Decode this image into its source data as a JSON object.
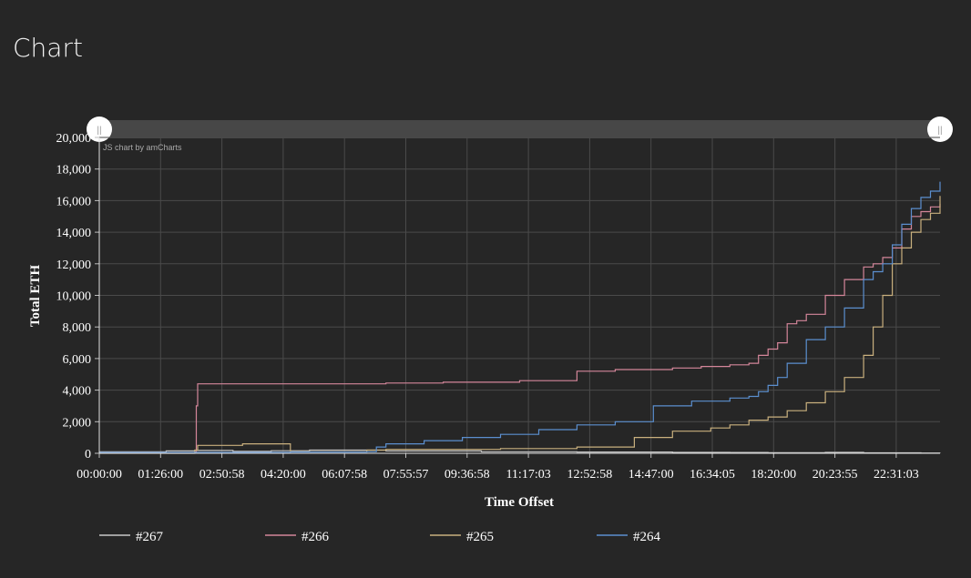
{
  "page": {
    "title": "Chart"
  },
  "credit_text": "JS chart by amCharts",
  "scrollbar": {
    "left_handle_glyph": "||",
    "right_handle_glyph": "||"
  },
  "chart_data": {
    "type": "line",
    "title": "",
    "xlabel": "Time Offset",
    "ylabel": "Total ETH",
    "x_range_seconds": [
      0,
      88000
    ],
    "x_ticks": [
      "00:00:00",
      "01:26:00",
      "02:50:58",
      "04:20:00",
      "06:07:58",
      "07:55:57",
      "09:36:58",
      "11:17:03",
      "12:52:58",
      "14:47:00",
      "16:34:05",
      "18:20:00",
      "20:23:55",
      "22:31:03"
    ],
    "ylim": [
      0,
      20000
    ],
    "y_ticks": [
      "0",
      "2,000",
      "4,000",
      "6,000",
      "8,000",
      "10,000",
      "12,000",
      "14,000",
      "16,000",
      "18,000",
      "20,000"
    ],
    "grid": true,
    "legend_position": "bottom",
    "series": [
      {
        "name": "#267",
        "color": "#c8c8c8",
        "x": [
          0,
          7000,
          10000,
          14000,
          18000,
          22000,
          30000,
          40000,
          50000,
          60000,
          66000,
          70000,
          76000,
          80000,
          86000,
          88000
        ],
        "y": [
          100,
          150,
          180,
          120,
          160,
          200,
          150,
          100,
          80,
          60,
          50,
          40,
          60,
          30,
          20,
          10
        ]
      },
      {
        "name": "#266",
        "color": "#d4869a",
        "x": [
          0,
          10000,
          10150,
          10300,
          15000,
          20000,
          30000,
          36000,
          38000,
          44000,
          50000,
          54000,
          60000,
          63000,
          66000,
          68000,
          69000,
          70000,
          71000,
          72000,
          73000,
          74000,
          76000,
          78000,
          80000,
          81000,
          82000,
          83000,
          84000,
          85000,
          86000,
          87000,
          88000
        ],
        "y": [
          50,
          80,
          3000,
          4400,
          4400,
          4400,
          4450,
          4500,
          4500,
          4600,
          5200,
          5300,
          5400,
          5500,
          5600,
          5700,
          6200,
          6600,
          7000,
          8200,
          8400,
          8800,
          10000,
          11000,
          11800,
          12000,
          12400,
          13000,
          14200,
          15000,
          15300,
          15600,
          15800
        ]
      },
      {
        "name": "#265",
        "color": "#c9b07e",
        "x": [
          0,
          10000,
          10300,
          15000,
          16000,
          20000,
          28000,
          30000,
          36000,
          42000,
          46000,
          50000,
          56000,
          60000,
          64000,
          66000,
          68000,
          70000,
          72000,
          74000,
          76000,
          78000,
          80000,
          81000,
          82000,
          83000,
          84000,
          85000,
          86000,
          87000,
          88000
        ],
        "y": [
          0,
          200,
          500,
          600,
          600,
          100,
          200,
          250,
          250,
          300,
          300,
          400,
          1000,
          1400,
          1600,
          1800,
          2100,
          2300,
          2700,
          3200,
          3900,
          4800,
          6200,
          8000,
          10000,
          12000,
          13000,
          14000,
          14800,
          15200,
          16300
        ]
      },
      {
        "name": "#264",
        "color": "#5b8fcf",
        "x": [
          0,
          10000,
          20000,
          28000,
          29000,
          30000,
          34000,
          38000,
          42000,
          46000,
          50000,
          54000,
          58000,
          62000,
          66000,
          68000,
          69000,
          70000,
          71000,
          72000,
          74000,
          76000,
          78000,
          80000,
          81000,
          82000,
          83000,
          84000,
          85000,
          86000,
          87000,
          88000
        ],
        "y": [
          50,
          60,
          80,
          100,
          400,
          600,
          800,
          1000,
          1200,
          1500,
          1800,
          2000,
          3000,
          3300,
          3500,
          3600,
          3900,
          4300,
          4800,
          5700,
          7200,
          8000,
          9200,
          11000,
          11500,
          12000,
          13200,
          14500,
          15500,
          16200,
          16600,
          17200
        ]
      }
    ]
  }
}
